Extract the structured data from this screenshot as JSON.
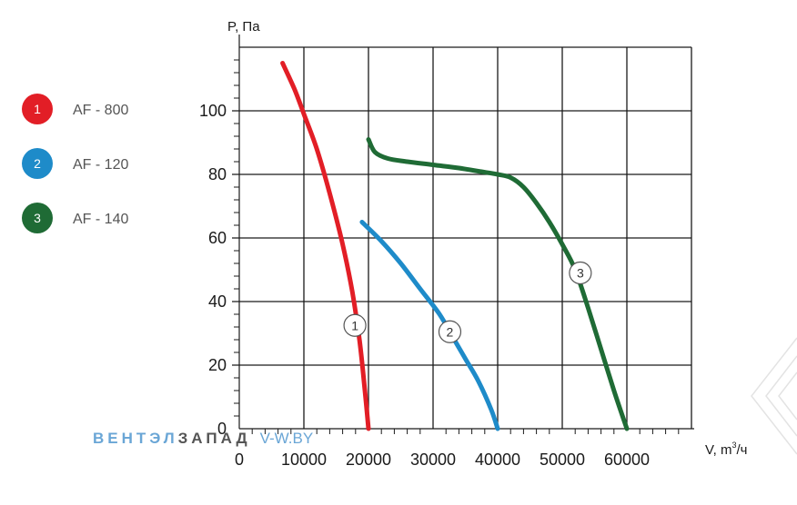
{
  "chart_data": {
    "type": "line",
    "ylabel": "P, Па",
    "xlabel_main": "V, m",
    "xlabel_sup": "3",
    "xlabel_tail": "/ч",
    "xlim": [
      0,
      70000
    ],
    "ylim": [
      0,
      120
    ],
    "x_ticks": [
      0,
      10000,
      20000,
      30000,
      40000,
      50000,
      60000
    ],
    "x_tick_labels": [
      "0",
      "10000",
      "20000",
      "30000",
      "40000",
      "50000",
      "60000"
    ],
    "y_ticks": [
      0,
      20,
      40,
      60,
      80,
      100
    ],
    "y_tick_labels": [
      "0",
      "20",
      "40",
      "60",
      "80",
      "100"
    ],
    "grid": true,
    "legend_position": "left",
    "series": [
      {
        "name": "AF - 800",
        "number": "1",
        "color": "#e21e26",
        "x": [
          6700,
          8500,
          10000,
          12000,
          14000,
          16000,
          17500,
          18600,
          19400,
          20000
        ],
        "y": [
          115,
          107,
          99,
          88,
          74,
          58,
          43,
          28,
          13,
          0
        ]
      },
      {
        "name": "AF - 120",
        "number": "2",
        "color": "#1e8bc9",
        "x": [
          19000,
          22000,
          25000,
          28000,
          31000,
          33000,
          35000,
          37000,
          39000,
          40000
        ],
        "y": [
          65,
          59,
          52,
          44,
          36,
          29,
          22,
          15,
          6,
          0
        ]
      },
      {
        "name": "AF - 140",
        "number": "3",
        "color": "#1f6b35",
        "x": [
          20000,
          21000,
          23000,
          26000,
          30000,
          34000,
          37000,
          40000,
          42000,
          44000,
          46000,
          48000,
          50000,
          52000,
          54000,
          56000,
          58000,
          60000
        ],
        "y": [
          91,
          87,
          85,
          84,
          83,
          82,
          81,
          80,
          79,
          76,
          71,
          65,
          58,
          50,
          38,
          25,
          12,
          0
        ]
      }
    ],
    "curve_labels": [
      {
        "text": "1",
        "x": 17900,
        "y": 32.5
      },
      {
        "text": "2",
        "x": 32600,
        "y": 30.5
      },
      {
        "text": "3",
        "x": 52800,
        "y": 49
      }
    ]
  },
  "legend": [
    {
      "number": "1",
      "label": "AF - 800",
      "color": "#e21e26"
    },
    {
      "number": "2",
      "label": "AF - 120",
      "color": "#1e8bc9"
    },
    {
      "number": "3",
      "label": "AF - 140",
      "color": "#1f6b35"
    }
  ],
  "watermark": {
    "part1": "ВЕНТЭЛ",
    "part2": "ЗАПАД",
    "part3": "V-W.BY",
    "color1": "#6aa6d6",
    "color2": "#555555"
  }
}
